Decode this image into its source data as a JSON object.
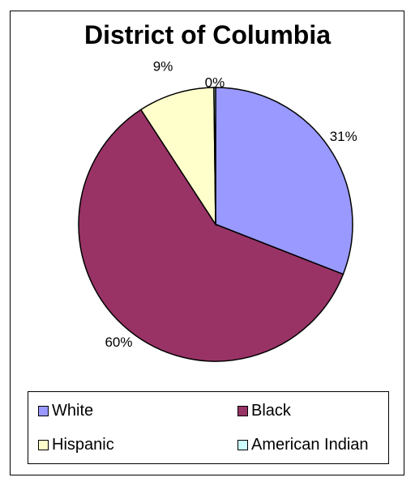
{
  "chart_data": {
    "type": "pie",
    "title": "District of Columbia",
    "slices": [
      {
        "name": "White",
        "value": 31,
        "label": "31%",
        "color": "#9999ff"
      },
      {
        "name": "Black",
        "value": 60,
        "label": "60%",
        "color": "#993366"
      },
      {
        "name": "Hispanic",
        "value": 9,
        "label": "9%",
        "color": "#ffffcc"
      },
      {
        "name": "American Indian",
        "value": 0.2,
        "label": "0%",
        "color": "#ccffff"
      }
    ],
    "legend_position": "bottom"
  }
}
